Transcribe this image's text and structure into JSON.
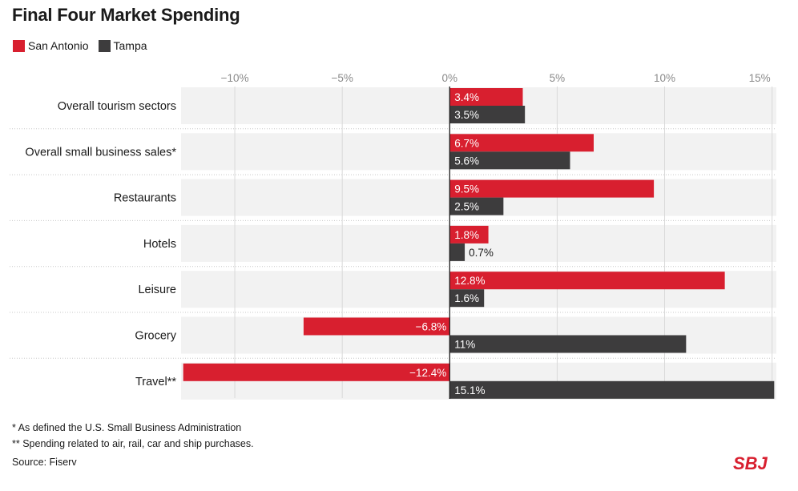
{
  "title": "Final Four Market Spending",
  "legend": [
    {
      "name": "San Antonio",
      "color": "#d81f2f"
    },
    {
      "name": "Tampa",
      "color": "#3d3c3d"
    }
  ],
  "chart_data": {
    "type": "bar",
    "orientation": "horizontal",
    "title": "Final Four Market Spending",
    "xlabel": "",
    "ylabel": "",
    "xlim": [
      -12.5,
      15.2
    ],
    "grid": true,
    "legend_position": "top-left",
    "ticks": [
      -10,
      -5,
      0,
      5,
      10,
      15
    ],
    "tick_labels": [
      "−10%",
      "−5%",
      "0%",
      "5%",
      "10%",
      "15%"
    ],
    "categories": [
      "Overall tourism sectors",
      "Overall small business sales*",
      "Restaurants",
      "Hotels",
      "Leisure",
      "Grocery",
      "Travel**"
    ],
    "series": [
      {
        "name": "San Antonio",
        "color": "#d81f2f",
        "values": [
          3.4,
          6.7,
          9.5,
          1.8,
          12.8,
          -6.8,
          -12.4
        ],
        "labels": [
          "3.4%",
          "6.7%",
          "9.5%",
          "1.8%",
          "12.8%",
          "−6.8%",
          "−12.4%"
        ]
      },
      {
        "name": "Tampa",
        "color": "#3d3c3d",
        "values": [
          3.5,
          5.6,
          2.5,
          0.7,
          1.6,
          11,
          15.1
        ],
        "labels": [
          "3.5%",
          "5.6%",
          "2.5%",
          "0.7%",
          "1.6%",
          "11%",
          "15.1%"
        ]
      }
    ]
  },
  "footnotes": [
    "* As defined the U.S. Small Business Administration",
    "** Spending related to air, rail, car and ship purchases."
  ],
  "source": "Source: Fiserv",
  "logo_text": "SBJ",
  "colors": {
    "row_bg": "#f2f2f2",
    "grid": "#d9d9d9",
    "axis": "#1a1a1a",
    "tick_text": "#8a8a8a",
    "brand": "#d81f2f"
  }
}
